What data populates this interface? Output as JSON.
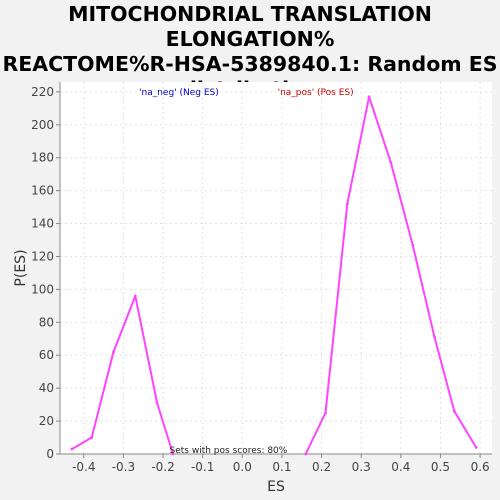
{
  "chart_data": {
    "type": "line",
    "title": "MITOCHONDRIAL TRANSLATION ELONGATION%\nREACTOME%R-HSA-5389840.1: Random ES\ndistribution",
    "xlabel": "ES",
    "ylabel": "P(ES)",
    "xlim": [
      -0.46,
      0.63
    ],
    "ylim": [
      0,
      226
    ],
    "x_ticks": [
      -0.4,
      -0.3,
      -0.2,
      -0.1,
      0.0,
      0.1,
      0.2,
      0.3,
      0.4,
      0.5,
      0.6
    ],
    "x_tick_labels": [
      "-0.4",
      "-0.3",
      "-0.2",
      "-0.1",
      "0.0",
      "0.1",
      "0.2",
      "0.3",
      "0.4",
      "0.5",
      "0.6"
    ],
    "y_ticks": [
      0,
      20,
      40,
      60,
      80,
      100,
      120,
      140,
      160,
      180,
      200,
      220
    ],
    "y_tick_labels": [
      "0",
      "20",
      "40",
      "60",
      "80",
      "100",
      "120",
      "140",
      "160",
      "180",
      "200",
      "220"
    ],
    "grid": true,
    "line_color": "#ff44ff",
    "series": [
      {
        "x": [
          -0.43,
          -0.38,
          -0.325,
          -0.27,
          -0.215,
          -0.175
        ],
        "y": [
          3,
          10,
          62,
          96,
          31,
          0
        ]
      },
      {
        "x": [
          0.16,
          0.21,
          0.265,
          0.32,
          0.375,
          0.43,
          0.485,
          0.535,
          0.59
        ],
        "y": [
          0,
          25,
          152,
          217,
          177,
          127,
          71,
          26,
          4
        ]
      }
    ],
    "legend": [
      {
        "label": "'na_neg' (Neg ES)",
        "color": "#0000cc"
      },
      {
        "label": "'na_pos' (Pos ES)",
        "color": "#cc0000"
      }
    ],
    "legend_placement": "top",
    "annotation": "Sets with pos scores: 80%"
  }
}
